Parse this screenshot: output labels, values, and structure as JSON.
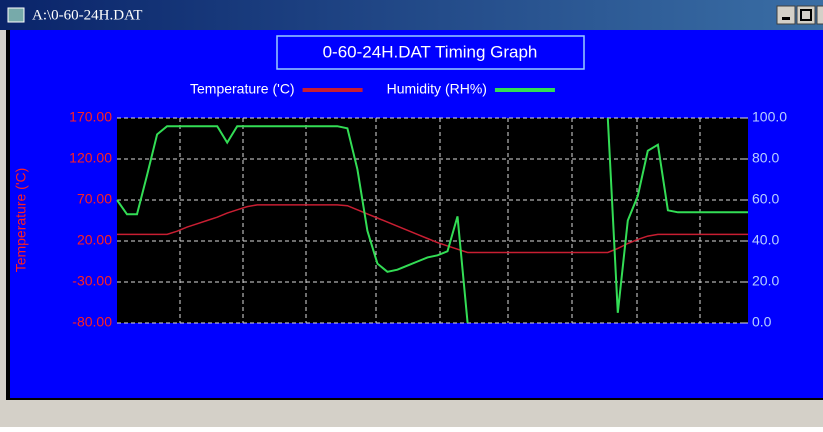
{
  "window": {
    "title": "A:\\0-60-24H.DAT"
  },
  "chart_data": {
    "type": "line",
    "title": "0-60-24H.DAT Timing Graph",
    "y_label": "Temperature ('C)",
    "series": [
      {
        "name": "Temperature ('C)",
        "color": "#c81e32",
        "values": [
          28,
          28,
          28,
          28,
          28,
          28,
          32,
          37,
          41,
          45,
          49,
          54,
          58,
          62,
          64,
          64,
          64,
          64,
          64,
          64,
          64,
          64,
          64,
          63,
          58,
          53,
          48,
          43,
          38,
          33,
          28,
          23,
          18,
          14,
          10,
          6,
          6,
          6,
          6,
          6,
          6,
          6,
          6,
          6,
          6,
          6,
          6,
          6,
          6,
          6,
          11,
          17,
          22,
          26,
          28,
          28,
          28,
          28,
          28,
          28,
          28,
          28,
          28,
          28
        ]
      },
      {
        "name": "Humidity (RH%)",
        "color": "#33dd55",
        "axis": "y2",
        "values": [
          60,
          53,
          53,
          72,
          92,
          96,
          96,
          96,
          96,
          96,
          96,
          88,
          96,
          96,
          96,
          96,
          96,
          96,
          96,
          96,
          96,
          96,
          96,
          95,
          75,
          45,
          29,
          25,
          26,
          28,
          30,
          32,
          33,
          35,
          52,
          0,
          null,
          null,
          null,
          null,
          null,
          null,
          null,
          null,
          null,
          null,
          null,
          null,
          null,
          100,
          5,
          50,
          62,
          84,
          87,
          55,
          54,
          54,
          54,
          54,
          54,
          54,
          54,
          54
        ]
      }
    ],
    "ylim": [
      -80,
      170
    ],
    "yticks": [
      {
        "value": -80,
        "label": "-80.00"
      },
      {
        "value": -30,
        "label": "-30.00"
      },
      {
        "value": 20,
        "label": "20.00"
      },
      {
        "value": 70,
        "label": "70.00"
      },
      {
        "value": 120,
        "label": "120.00"
      },
      {
        "value": 170,
        "label": "170.00"
      }
    ],
    "y2lim": [
      0,
      100
    ],
    "y2ticks": [
      {
        "value": 0,
        "label": "0.0"
      },
      {
        "value": 20,
        "label": "20.0"
      },
      {
        "value": 40,
        "label": "40.0"
      },
      {
        "value": 60,
        "label": "60.0"
      },
      {
        "value": 80,
        "label": "80.0"
      },
      {
        "value": 100,
        "label": "100.0"
      }
    ],
    "grid": true
  }
}
